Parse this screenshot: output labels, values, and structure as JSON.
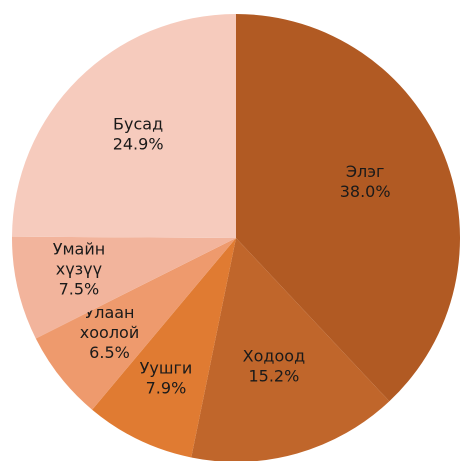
{
  "chart_data": {
    "type": "pie",
    "categories": [
      "Элэг",
      "Ходоод",
      "Уушги",
      "Улаан хоолой",
      "Умайн хүзүү",
      "Бусад"
    ],
    "values": [
      38.0,
      15.2,
      7.9,
      6.5,
      7.5,
      24.9
    ],
    "value_labels": [
      "38.0%",
      "15.2%",
      "7.9%",
      "6.5%",
      "7.5%",
      "24.9%"
    ],
    "colors": [
      "#b15a23",
      "#c0662b",
      "#e07b32",
      "#ee9a6d",
      "#f2b49c",
      "#f6cbbd"
    ]
  }
}
